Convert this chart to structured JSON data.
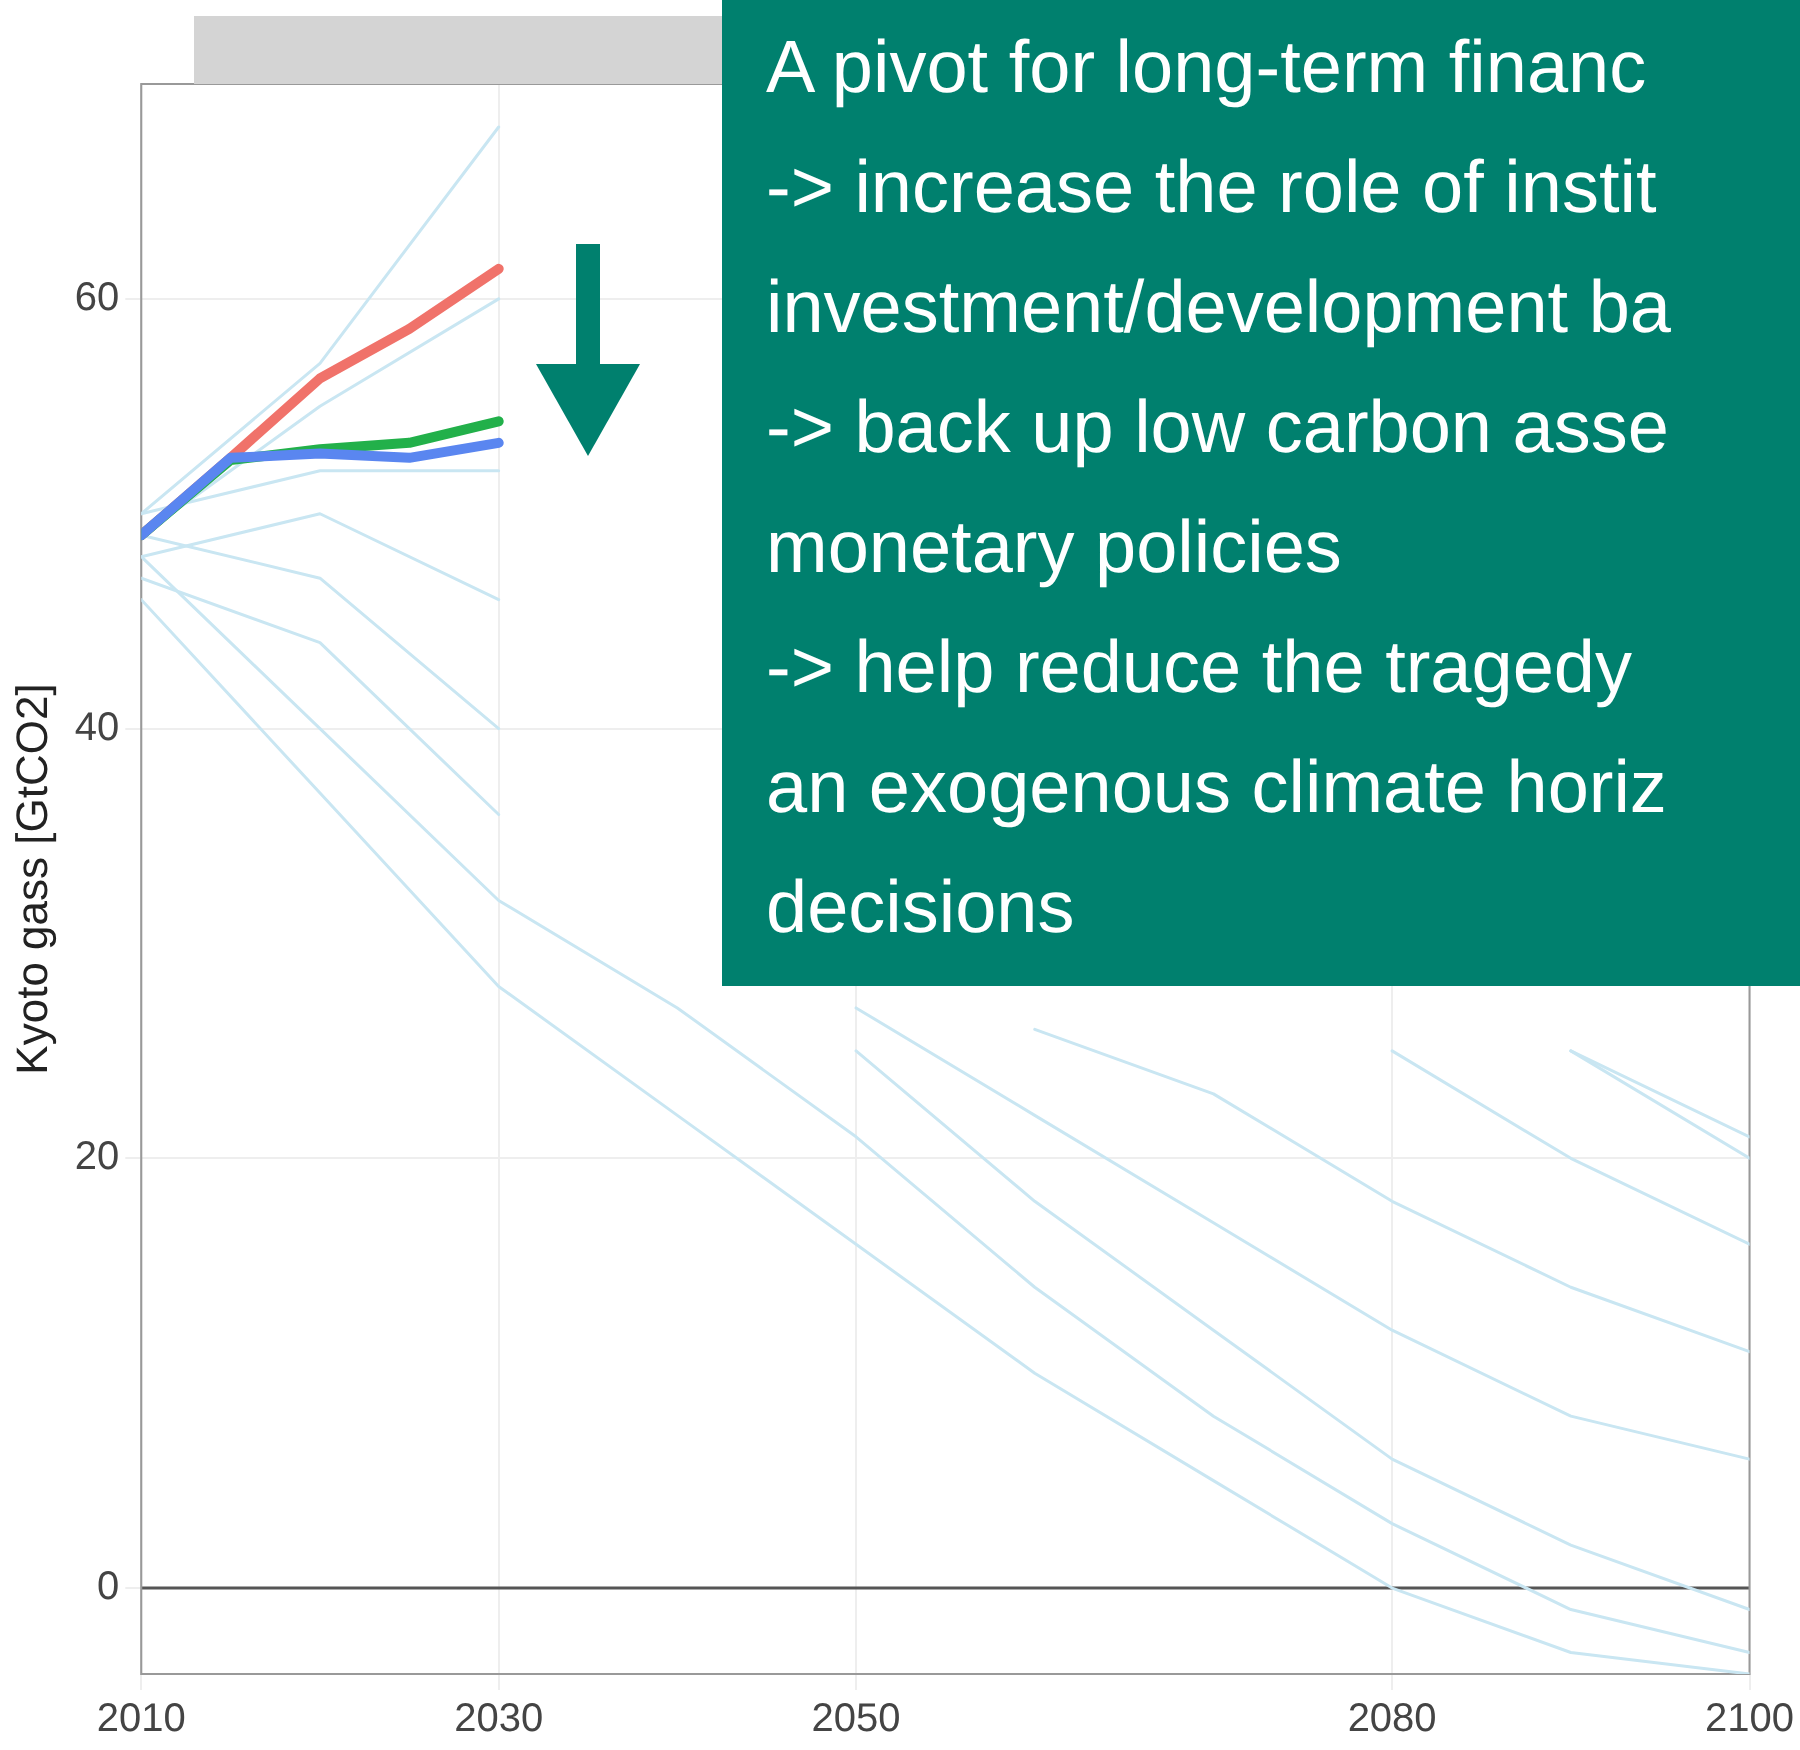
{
  "chart_data": {
    "type": "line",
    "ylabel": "Kyoto gass [GtCO2]",
    "x": [
      2010,
      2020,
      2030,
      2040,
      2050,
      2060,
      2070,
      2080,
      2090,
      2100
    ],
    "series": [
      {
        "color": "#c9e6f2",
        "values": [
          50,
          57,
          68,
          null,
          null,
          null,
          null,
          null,
          25,
          20
        ]
      },
      {
        "color": "#c9e6f2",
        "values": [
          49,
          55,
          60,
          null,
          null,
          null,
          null,
          null,
          25,
          21
        ]
      },
      {
        "color": "#c9e6f2",
        "values": [
          50,
          52,
          52,
          null,
          null,
          null,
          null,
          25,
          20,
          16
        ]
      },
      {
        "color": "#c9e6f2",
        "values": [
          48,
          50,
          46,
          null,
          null,
          26,
          23,
          18,
          14,
          11
        ]
      },
      {
        "color": "#c9e6f2",
        "values": [
          49,
          47,
          40,
          null,
          27,
          22,
          17,
          12,
          8,
          6
        ]
      },
      {
        "color": "#c9e6f2",
        "values": [
          47,
          44,
          36,
          null,
          25,
          18,
          12,
          6,
          2,
          -1
        ]
      },
      {
        "color": "#c9e6f2",
        "values": [
          48,
          40,
          32,
          27,
          21,
          14,
          8,
          3,
          -1,
          -3
        ]
      },
      {
        "color": "#c9e6f2",
        "values": [
          46,
          37,
          28,
          22,
          16,
          10,
          5,
          0,
          -3,
          -4
        ]
      },
      {
        "color": "#f0726a",
        "x": [
          2010,
          2015,
          2020,
          2025,
          2030
        ],
        "values": [
          49,
          52.6,
          56.3,
          58.6,
          61.4
        ]
      },
      {
        "color": "#22b04a",
        "x": [
          2010,
          2015,
          2020,
          2025,
          2030
        ],
        "values": [
          49,
          52.5,
          53,
          53.3,
          54.3
        ]
      },
      {
        "color": "#5a86f0",
        "x": [
          2010,
          2015,
          2020,
          2025,
          2030
        ],
        "values": [
          49,
          52.6,
          52.8,
          52.6,
          53.3
        ]
      }
    ],
    "xlim": [
      2010,
      2100
    ],
    "xticks": [
      2010,
      2030,
      2050,
      2080,
      2100
    ],
    "ylim": [
      -4,
      70
    ],
    "yticks": [
      0,
      20,
      40,
      60
    ],
    "grid": true,
    "marker": "none",
    "line_style": "solid",
    "legend": false,
    "ref_lines": [
      {
        "axis": "y",
        "value": 0,
        "color": "#555555"
      }
    ],
    "annotations": [
      "A pivot for long-term financ",
      "-> increase the role of instit",
      "investment/development ba",
      "-> back up low carbon asse",
      "monetary policies",
      "-> help reduce the tragedy",
      "an exogenous climate horiz",
      "decisions"
    ]
  }
}
